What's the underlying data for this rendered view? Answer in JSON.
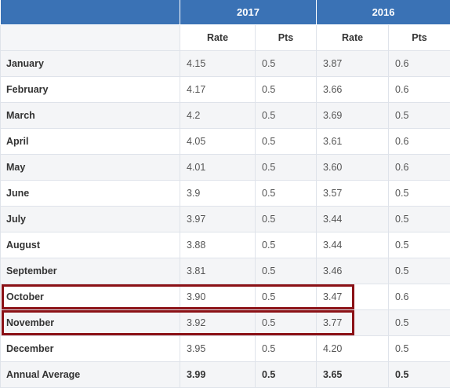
{
  "headers": {
    "years": [
      "2017",
      "2016"
    ],
    "columns": [
      "Rate",
      "Pts",
      "Rate",
      "Pts"
    ]
  },
  "rows": [
    {
      "month": "January",
      "r2017": "4.15",
      "p2017": "0.5",
      "r2016": "3.87",
      "p2016": "0.6"
    },
    {
      "month": "February",
      "r2017": "4.17",
      "p2017": "0.5",
      "r2016": "3.66",
      "p2016": "0.6"
    },
    {
      "month": "March",
      "r2017": "4.2",
      "p2017": "0.5",
      "r2016": "3.69",
      "p2016": "0.5"
    },
    {
      "month": "April",
      "r2017": "4.05",
      "p2017": "0.5",
      "r2016": "3.61",
      "p2016": "0.6"
    },
    {
      "month": "May",
      "r2017": "4.01",
      "p2017": "0.5",
      "r2016": "3.60",
      "p2016": "0.6"
    },
    {
      "month": "June",
      "r2017": "3.9",
      "p2017": "0.5",
      "r2016": "3.57",
      "p2016": "0.5"
    },
    {
      "month": "July",
      "r2017": "3.97",
      "p2017": "0.5",
      "r2016": "3.44",
      "p2016": "0.5"
    },
    {
      "month": "August",
      "r2017": "3.88",
      "p2017": "0.5",
      "r2016": "3.44",
      "p2016": "0.5"
    },
    {
      "month": "September",
      "r2017": "3.81",
      "p2017": "0.5",
      "r2016": "3.46",
      "p2016": "0.5"
    },
    {
      "month": "October",
      "r2017": "3.90",
      "p2017": "0.5",
      "r2016": "3.47",
      "p2016": "0.6"
    },
    {
      "month": "November",
      "r2017": "3.92",
      "p2017": "0.5",
      "r2016": "3.77",
      "p2016": "0.5"
    },
    {
      "month": "December",
      "r2017": "3.95",
      "p2017": "0.5",
      "r2016": "4.20",
      "p2016": "0.5"
    }
  ],
  "average": {
    "label": "Annual Average",
    "r2017": "3.99",
    "p2017": "0.5",
    "r2016": "3.65",
    "p2016": "0.5"
  },
  "highlighted_rows": [
    "October",
    "November"
  ],
  "colors": {
    "header": "#3a72b5",
    "highlight": "#8b1116",
    "stripe": "#f4f5f7"
  }
}
